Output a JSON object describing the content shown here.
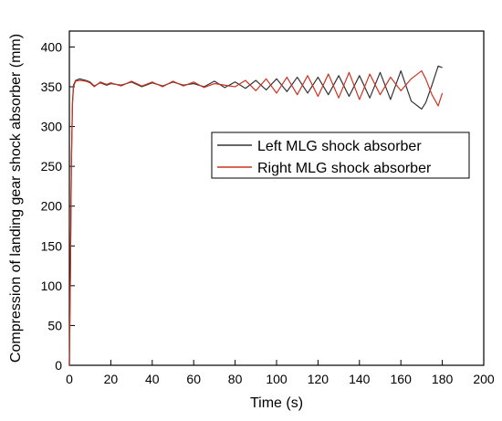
{
  "chart_data": {
    "type": "line",
    "xlabel": "Time (s)",
    "ylabel": "Compression of landing gear shock absorber (mm)",
    "xlim": [
      0,
      200
    ],
    "ylim": [
      0,
      420
    ],
    "xticks": [
      0,
      20,
      40,
      60,
      80,
      100,
      120,
      140,
      160,
      180,
      200
    ],
    "yticks": [
      0,
      50,
      100,
      150,
      200,
      250,
      300,
      350,
      400
    ],
    "grid": false,
    "legend_position": "center-right",
    "series": [
      {
        "name": "Left MLG shock absorber",
        "color": "#333333",
        "x": [
          0,
          0.5,
          1,
          1.5,
          2,
          3,
          5,
          8,
          10,
          12,
          15,
          18,
          20,
          25,
          30,
          35,
          40,
          45,
          50,
          55,
          60,
          65,
          70,
          75,
          80,
          85,
          90,
          95,
          100,
          105,
          110,
          115,
          120,
          125,
          130,
          135,
          140,
          145,
          150,
          155,
          160,
          165,
          170,
          172,
          175,
          178,
          180
        ],
        "y": [
          0,
          120,
          260,
          330,
          352,
          358,
          360,
          358,
          356,
          351,
          355,
          352,
          354,
          352,
          356,
          350,
          355,
          351,
          356,
          352,
          354,
          350,
          357,
          349,
          356,
          348,
          358,
          346,
          360,
          344,
          362,
          342,
          362,
          340,
          364,
          338,
          364,
          336,
          368,
          334,
          370,
          332,
          322,
          330,
          352,
          376,
          374
        ]
      },
      {
        "name": "Right MLG shock absorber",
        "color": "#cc3322",
        "x": [
          0,
          0.5,
          1,
          1.5,
          2,
          3,
          5,
          8,
          10,
          12,
          15,
          18,
          20,
          25,
          30,
          35,
          40,
          45,
          50,
          55,
          60,
          65,
          70,
          75,
          80,
          85,
          90,
          95,
          100,
          105,
          110,
          115,
          120,
          125,
          130,
          135,
          140,
          145,
          150,
          155,
          160,
          165,
          170,
          172,
          175,
          178,
          180
        ],
        "y": [
          0,
          115,
          255,
          328,
          350,
          357,
          358,
          357,
          355,
          350,
          356,
          353,
          355,
          351,
          357,
          351,
          356,
          350,
          357,
          351,
          356,
          349,
          354,
          352,
          350,
          358,
          345,
          360,
          342,
          362,
          340,
          364,
          338,
          366,
          336,
          368,
          334,
          366,
          340,
          362,
          345,
          360,
          370,
          360,
          340,
          326,
          342
        ]
      }
    ]
  }
}
